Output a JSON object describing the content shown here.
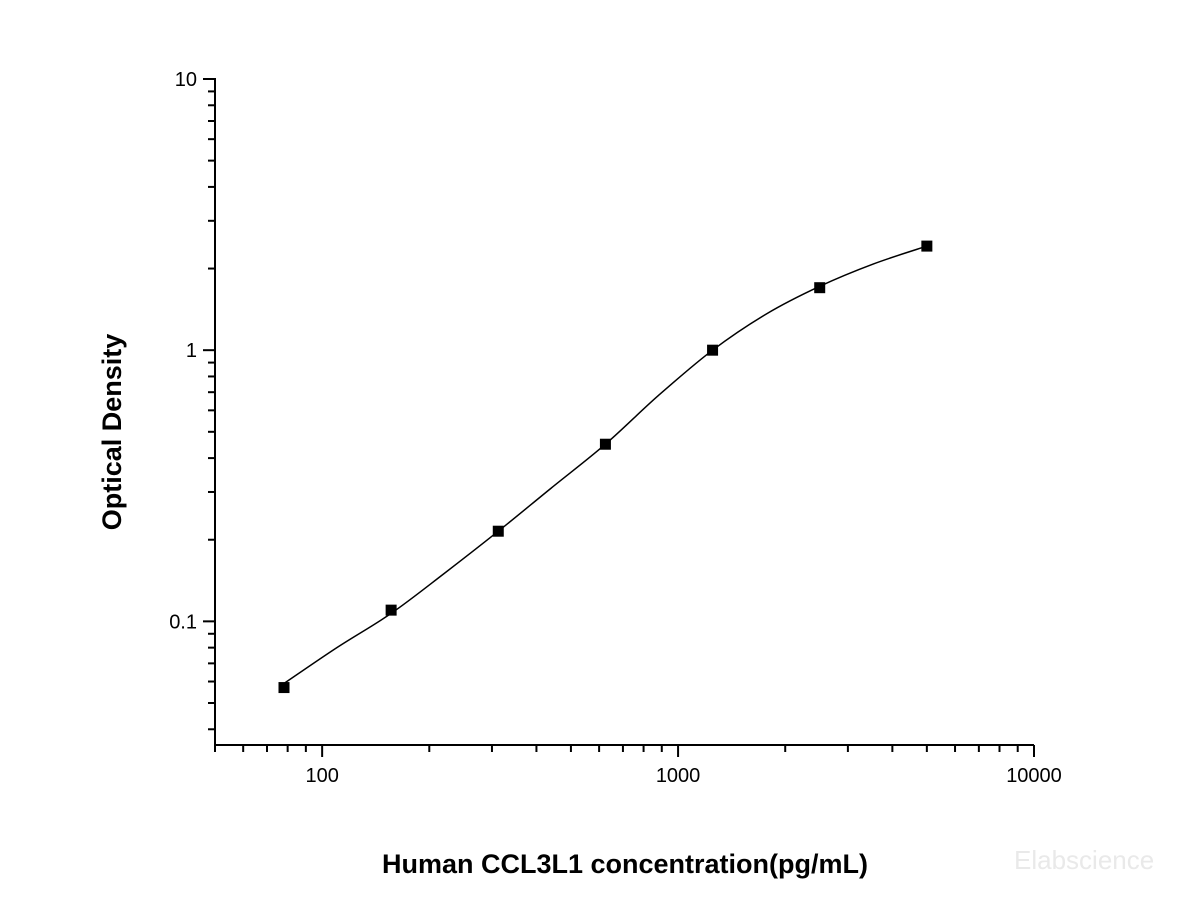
{
  "chart_data": {
    "type": "scatter",
    "xlabel": "Human CCL3L1 concentration(pg/mL)",
    "ylabel": "Optical Density",
    "x_scale": "log",
    "y_scale": "log",
    "xlim": [
      50,
      10000
    ],
    "ylim": [
      0.035,
      10
    ],
    "x_ticks": [
      {
        "value": 100,
        "label": "100"
      },
      {
        "value": 1000,
        "label": "1000"
      },
      {
        "value": 10000,
        "label": "10000"
      }
    ],
    "y_ticks": [
      {
        "value": 0.1,
        "label": "0.1"
      },
      {
        "value": 1,
        "label": "1"
      },
      {
        "value": 10,
        "label": "10"
      }
    ],
    "grid": false,
    "series": [
      {
        "marker": "square",
        "color": "#000000",
        "x": [
          78.13,
          156.25,
          312.5,
          625,
          1250,
          2500,
          5000
        ],
        "y": [
          0.057,
          0.11,
          0.215,
          0.45,
          1.0,
          1.7,
          2.42
        ]
      }
    ],
    "fit_curve": {
      "color": "#000000",
      "x": [
        78.13,
        110,
        156.25,
        220,
        312.5,
        440,
        625,
        880,
        1250,
        1770,
        2500,
        3540,
        5000
      ],
      "y": [
        0.059,
        0.08,
        0.107,
        0.15,
        0.215,
        0.31,
        0.45,
        0.68,
        1.0,
        1.36,
        1.72,
        2.08,
        2.42
      ]
    },
    "watermark": "Elabscience"
  }
}
